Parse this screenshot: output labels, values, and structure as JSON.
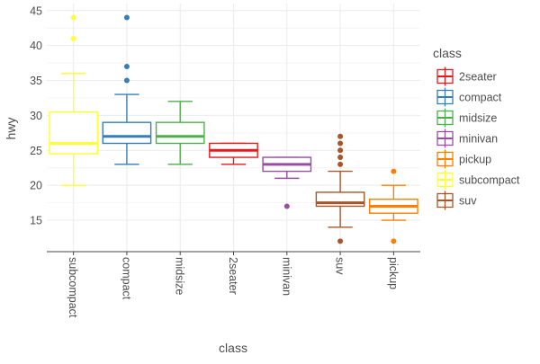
{
  "chart_data": {
    "type": "box",
    "xlabel": "class",
    "ylabel": "hwy",
    "ylim": [
      10.5,
      46
    ],
    "yticks": [
      15,
      20,
      25,
      30,
      35,
      40,
      45
    ],
    "grid": true,
    "legend_position": "right",
    "legend_title": "class",
    "legend_entries": [
      "2seater",
      "compact",
      "midsize",
      "minivan",
      "pickup",
      "subcompact",
      "suv"
    ],
    "colors": {
      "2seater": "#e41a1c",
      "compact": "#377eb8",
      "midsize": "#4daf4a",
      "minivan": "#984ea3",
      "pickup": "#ff7f00",
      "subcompact": "#ffff33",
      "suv": "#a65628"
    },
    "categories": [
      "subcompact",
      "compact",
      "midsize",
      "2seater",
      "minivan",
      "suv",
      "pickup"
    ],
    "boxes": [
      {
        "category": "subcompact",
        "lower_whisker": 20,
        "q1": 24.5,
        "median": 26,
        "q3": 30.5,
        "upper_whisker": 36,
        "outliers": [
          41,
          44
        ]
      },
      {
        "category": "compact",
        "lower_whisker": 23,
        "q1": 26,
        "median": 27,
        "q3": 29,
        "upper_whisker": 33,
        "outliers": [
          35,
          37,
          44
        ]
      },
      {
        "category": "midsize",
        "lower_whisker": 23,
        "q1": 26,
        "median": 27,
        "q3": 29,
        "upper_whisker": 32,
        "outliers": []
      },
      {
        "category": "2seater",
        "lower_whisker": 23,
        "q1": 24,
        "median": 25,
        "q3": 26,
        "upper_whisker": 26,
        "outliers": []
      },
      {
        "category": "minivan",
        "lower_whisker": 21,
        "q1": 22,
        "median": 23,
        "q3": 24,
        "upper_whisker": 24,
        "outliers": [
          17
        ]
      },
      {
        "category": "suv",
        "lower_whisker": 14,
        "q1": 17,
        "median": 17.5,
        "q3": 19,
        "upper_whisker": 22,
        "outliers": [
          12,
          23,
          24,
          25,
          26,
          27
        ]
      },
      {
        "category": "pickup",
        "lower_whisker": 15,
        "q1": 16,
        "median": 17,
        "q3": 18,
        "upper_whisker": 20,
        "outliers": [
          12,
          22
        ]
      }
    ]
  }
}
